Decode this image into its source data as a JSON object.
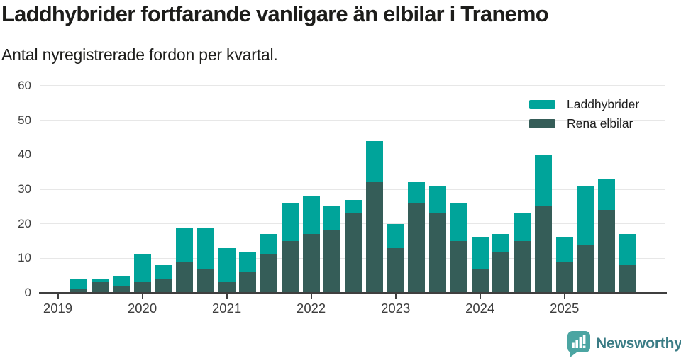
{
  "header": {
    "title": "Laddhybrider fortfarande vanligare än elbilar i Tranemo",
    "subtitle": "Antal nyregistrerade fordon per kvartal."
  },
  "footer": {
    "brand": "Newsworthy"
  },
  "colors": {
    "laddhybrider": "#00a49a",
    "rena_elbilar": "#355d58",
    "title_text": "#1d1d1b",
    "axis_text": "#3d3d3d",
    "grid": "#e7e7e7",
    "axis_line": "#3f3f3f",
    "logo_mark": "#4ba5a2",
    "logo_text": "#3a7c85"
  },
  "chart_data": {
    "type": "bar",
    "stacked": true,
    "title": "Laddhybrider fortfarande vanligare än elbilar i Tranemo",
    "subtitle": "Antal nyregistrerade fordon per kvartal.",
    "x": [
      "2019 Q2",
      "2019 Q3",
      "2019 Q4",
      "2020 Q1",
      "2020 Q2",
      "2020 Q3",
      "2020 Q4",
      "2021 Q1",
      "2021 Q2",
      "2021 Q3",
      "2021 Q4",
      "2022 Q1",
      "2022 Q2",
      "2022 Q3",
      "2022 Q4",
      "2023 Q1",
      "2023 Q2",
      "2023 Q3",
      "2023 Q4",
      "2024 Q1",
      "2024 Q2",
      "2024 Q3",
      "2024 Q4",
      "2025 Q1",
      "2025 Q2",
      "2025 Q3",
      "2025 Q4"
    ],
    "series": [
      {
        "name": "Laddhybrider",
        "color": "#00a49a",
        "values": [
          3,
          1,
          3,
          8,
          4,
          10,
          12,
          10,
          6,
          6,
          11,
          11,
          7,
          4,
          12,
          7,
          6,
          8,
          11,
          9,
          5,
          8,
          15,
          7,
          17,
          9,
          9
        ]
      },
      {
        "name": "Rena elbilar",
        "color": "#355d58",
        "values": [
          1,
          3,
          2,
          3,
          4,
          9,
          7,
          3,
          6,
          11,
          15,
          17,
          18,
          23,
          32,
          13,
          26,
          23,
          15,
          7,
          12,
          15,
          25,
          9,
          14,
          24,
          8
        ]
      }
    ],
    "totals": [
      4,
      4,
      5,
      11,
      8,
      19,
      19,
      13,
      12,
      17,
      26,
      28,
      25,
      27,
      44,
      20,
      32,
      31,
      26,
      16,
      17,
      23,
      40,
      16,
      31,
      33,
      17
    ],
    "ylim": [
      0,
      60
    ],
    "yticks": [
      0,
      10,
      20,
      30,
      40,
      50,
      60
    ],
    "xticks": [
      "2019",
      "2020",
      "2021",
      "2022",
      "2023",
      "2024",
      "2025"
    ],
    "grid": true,
    "legend_position": "top-right"
  }
}
